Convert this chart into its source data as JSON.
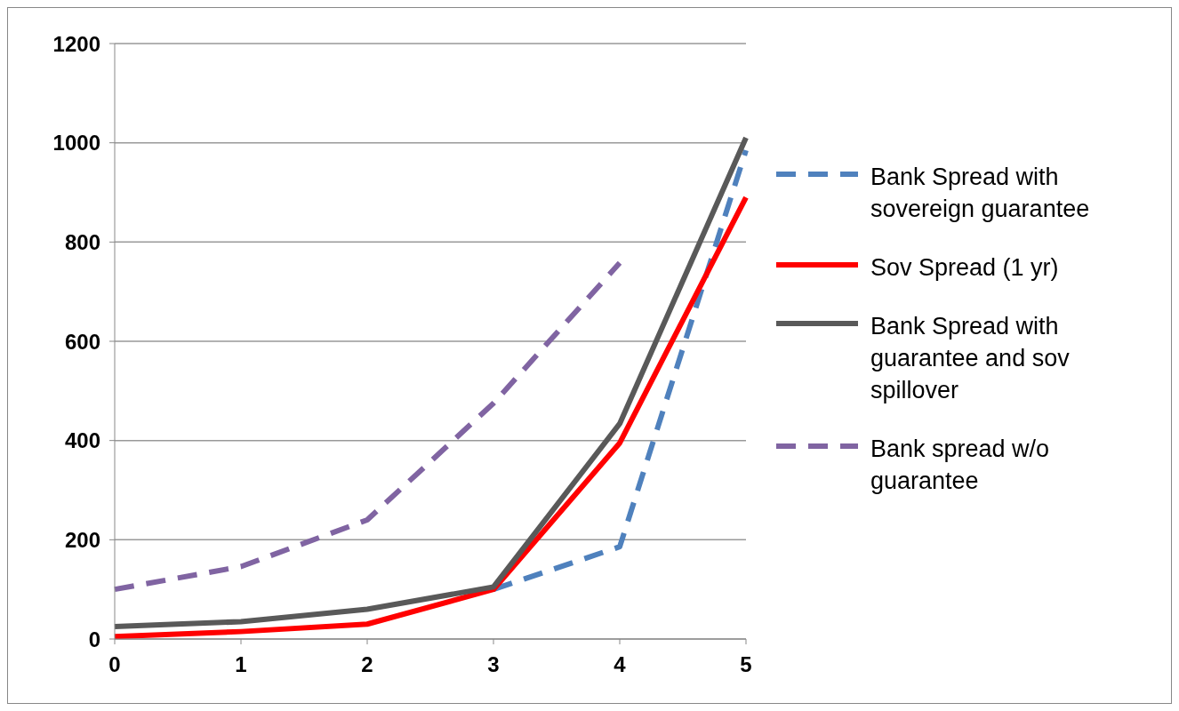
{
  "chart_data": {
    "type": "line",
    "categories": [
      "0",
      "1",
      "2",
      "3",
      "4",
      "5"
    ],
    "series": [
      {
        "name": "Bank Spread with sovereign guarantee",
        "color": "#4f81bd",
        "line_style": "dashed",
        "values": [
          null,
          null,
          null,
          100,
          186,
          985
        ]
      },
      {
        "name": "Sov Spread (1 yr)",
        "color": "#ff0000",
        "line_style": "solid",
        "values": [
          5,
          15,
          30,
          100,
          395,
          890
        ]
      },
      {
        "name": "Bank Spread with guarantee and sov spillover",
        "color": "#595959",
        "line_style": "solid",
        "values": [
          25,
          35,
          60,
          105,
          434,
          1010
        ]
      },
      {
        "name": "Bank spread w/o guarantee",
        "color": "#8064a2",
        "line_style": "dashed",
        "values": [
          100,
          146,
          240,
          475,
          758,
          null
        ]
      }
    ],
    "ylim": [
      0,
      1200
    ],
    "yticks": [
      0,
      200,
      400,
      600,
      800,
      1000,
      1200
    ],
    "grid": "y",
    "legend": "right",
    "marker": "none"
  }
}
